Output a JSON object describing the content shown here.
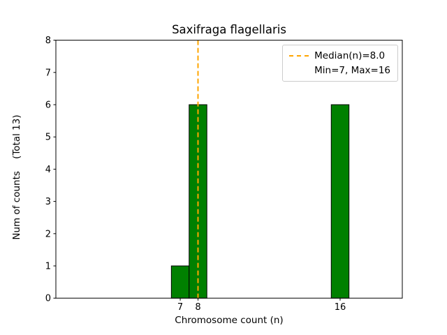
{
  "chart_data": {
    "type": "bar",
    "title": "Saxifraga flagellaris",
    "xlabel": "Chromosome count (n)",
    "ylabel": "Num of counts    (Total 13)",
    "bars": [
      {
        "x": 7,
        "count": 1
      },
      {
        "x": 8,
        "count": 6
      },
      {
        "x": 16,
        "count": 6
      }
    ],
    "total_counts": 13,
    "bar_width": 1,
    "bar_color": "#008000",
    "bar_edge_color": "#000000",
    "xlim": [
      0,
      19.5
    ],
    "ylim": [
      0,
      8
    ],
    "xticks": [
      7,
      8,
      16
    ],
    "yticks": [
      0,
      1,
      2,
      3,
      4,
      5,
      6,
      7,
      8
    ],
    "grid": false,
    "median_line": {
      "x": 8,
      "color": "#ffa500",
      "style": "dashed"
    },
    "legend": {
      "position": "upper right",
      "entries": [
        {
          "label": "Median(n)=8.0",
          "handle": "dashed-orange-line"
        },
        {
          "label": "Min=7, Max=16",
          "handle": "none"
        }
      ]
    }
  }
}
